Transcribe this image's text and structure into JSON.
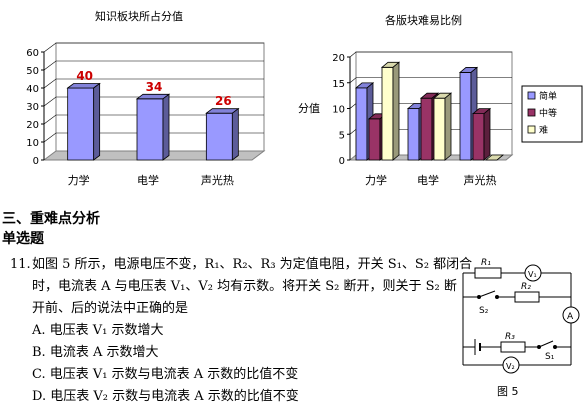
{
  "chart_data": [
    {
      "type": "bar",
      "title": "知识板块所占分值",
      "categories": [
        "力学",
        "电学",
        "声光热"
      ],
      "values": [
        40,
        34,
        26
      ],
      "data_labels": [
        "40",
        "34",
        "26"
      ],
      "ylim": [
        0,
        60
      ],
      "yticks": [
        "0",
        "10",
        "20",
        "30",
        "40",
        "50",
        "60"
      ],
      "xlabel": "",
      "ylabel": "",
      "grid": true,
      "colors": {
        "bar": "#9999ff",
        "label": "#cc0000"
      }
    },
    {
      "type": "bar",
      "title": "各版块难易比例",
      "categories": [
        "力学",
        "电学",
        "声光热"
      ],
      "ylabel": "分值",
      "ylim": [
        0,
        20
      ],
      "yticks": [
        "0",
        "5",
        "10",
        "15",
        "20"
      ],
      "grid": true,
      "legend_position": "right",
      "series": [
        {
          "name": "简单",
          "values": [
            14,
            10,
            17
          ],
          "color": "#9999ff"
        },
        {
          "name": "中等",
          "values": [
            8,
            12,
            9
          ],
          "color": "#993366"
        },
        {
          "name": "难",
          "values": [
            18,
            12,
            0
          ],
          "color": "#ffffcc"
        }
      ]
    }
  ],
  "section": {
    "heading": "三、重难点分析",
    "subheading": "单选题"
  },
  "question": {
    "number": "11.",
    "lines": [
      "如图 5 所示，电源电压不变，R₁、R₂、R₃ 为定值电阻，开关 S₁、S₂ 都闭合",
      "时，电流表 A 与电压表 V₁、V₂ 均有示数。将开关 S₂ 断开，则关于 S₂ 断",
      "开前、后的说法中正确的是"
    ],
    "options": [
      "A.  电压表 V₁ 示数增大",
      "B.  电流表 A 示数增大",
      "C.  电压表 V₁ 示数与电流表 A 示数的比值不变",
      "D.  电压表 V₂ 示数与电流表 A 示数的比值不变"
    ]
  },
  "figure": {
    "caption": "图 5",
    "labels": {
      "R1": "R₁",
      "R2": "R₂",
      "R3": "R₃",
      "S1": "S₁",
      "S2": "S₂",
      "V1": "V₁",
      "V2": "V₂",
      "A": "A"
    }
  }
}
